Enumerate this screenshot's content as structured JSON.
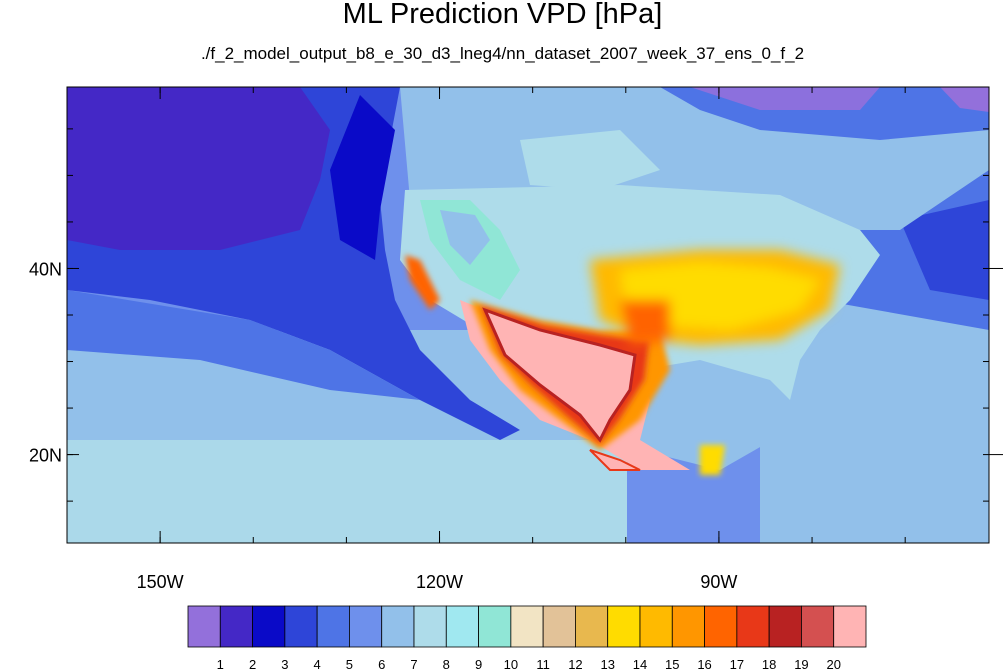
{
  "chart_data": {
    "type": "heatmap",
    "title": "ML Prediction VPD [hPa]",
    "subtitle": "./f_2_model_output_b8_e_30_d3_lneg4/nn_dataset_2007_week_37_ens_0_f_2",
    "x_axis": {
      "range": [
        -160,
        -61
      ],
      "ticks": [
        -150,
        -120,
        -90
      ],
      "tick_labels": [
        "150W",
        "120W",
        "90W"
      ]
    },
    "y_axis": {
      "range": [
        10.5,
        59.5
      ],
      "ticks": [
        20,
        40
      ],
      "tick_labels": [
        "20N",
        "40N"
      ]
    },
    "colorbar": {
      "levels": [
        "1",
        "2",
        "3",
        "4",
        "5",
        "6",
        "7",
        "8",
        "9",
        "10",
        "11",
        "12",
        "13",
        "14",
        "15",
        "16",
        "17",
        "18",
        "19",
        "20"
      ],
      "colors": [
        "#9370db",
        "#4428c6",
        "#0a0ac8",
        "#2e45d8",
        "#4e74e6",
        "#6e90ec",
        "#92c0ea",
        "#aedcea",
        "#a0e8f0",
        "#90e6d6",
        "#f2e4c4",
        "#e2c298",
        "#e8b84e",
        "#ffdc00",
        "#ffba00",
        "#ff9600",
        "#ff6400",
        "#e83818",
        "#b82222",
        "#d45050",
        "#ffb4b4"
      ]
    },
    "grid": false,
    "legend_placement": "bottom"
  }
}
